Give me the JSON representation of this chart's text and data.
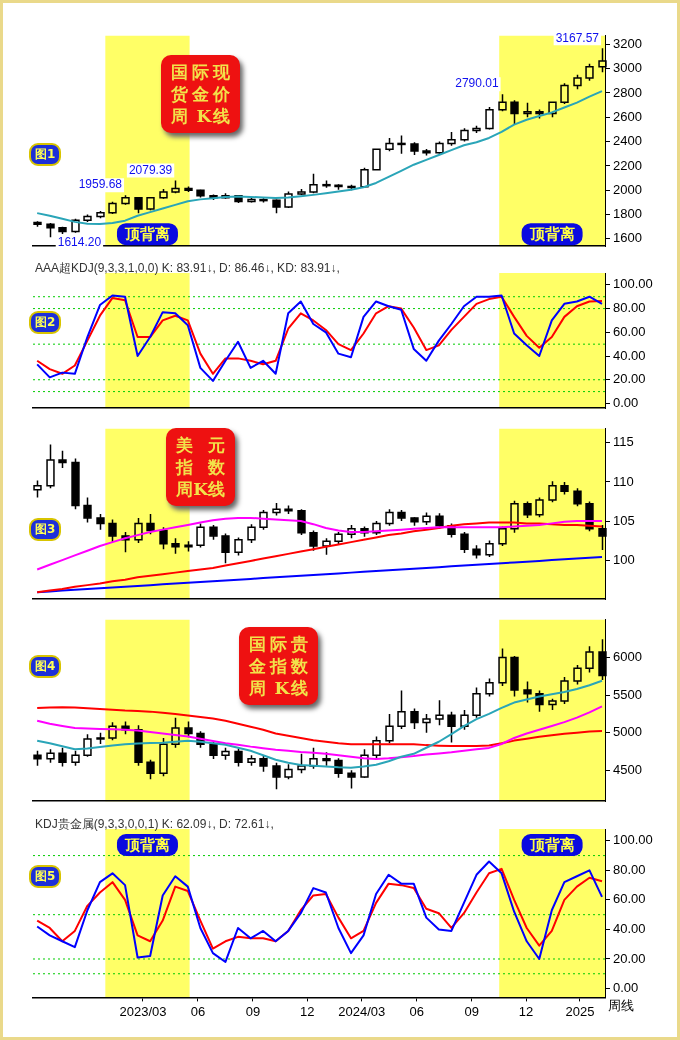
{
  "chart_data": [
    {
      "type": "candlestick",
      "title": "国际现货金价周 K线",
      "color": "#000000",
      "x": [
        "2022-09-05",
        "2022-09-26",
        "2022-10-17",
        "2022-11-07",
        "2022-11-28",
        "2022-12-19",
        "2023-01-09",
        "2023-01-30",
        "2023-02-20",
        "2023-03-13",
        "2023-04-03",
        "2023-04-24",
        "2023-05-15",
        "2023-06-05",
        "2023-06-26",
        "2023-07-17",
        "2023-08-07",
        "2023-08-28",
        "2023-09-18",
        "2023-10-09",
        "2023-10-30",
        "2023-11-20",
        "2023-12-11",
        "2024-01-01",
        "2024-01-22",
        "2024-02-12",
        "2024-03-04",
        "2024-03-25",
        "2024-04-15",
        "2024-05-06",
        "2024-05-27",
        "2024-06-17",
        "2024-07-08",
        "2024-07-29",
        "2024-08-19",
        "2024-09-09",
        "2024-09-30",
        "2024-10-21",
        "2024-11-11",
        "2024-12-02",
        "2024-12-23",
        "2025-01-13",
        "2025-02-03",
        "2025-02-24",
        "2025-03-17",
        "2025-04-07"
      ],
      "ohlc": [
        [
          1735,
          1745,
          1700,
          1720
        ],
        [
          1720,
          1730,
          1614.2,
          1692
        ],
        [
          1692,
          1700,
          1640,
          1660
        ],
        [
          1660,
          1765,
          1650,
          1754
        ],
        [
          1754,
          1800,
          1740,
          1785
        ],
        [
          1785,
          1830,
          1770,
          1815
        ],
        [
          1815,
          1905,
          1805,
          1892
        ],
        [
          1892,
          1959.68,
          1880,
          1938
        ],
        [
          1938,
          1945,
          1810,
          1846
        ],
        [
          1846,
          1938,
          1835,
          1938
        ],
        [
          1938,
          2010,
          1930,
          1985
        ],
        [
          1985,
          2079.39,
          1975,
          2015
        ],
        [
          2015,
          2030,
          1985,
          2000
        ],
        [
          2000,
          2005,
          1940,
          1954
        ],
        [
          1954,
          1965,
          1920,
          1938
        ],
        [
          1938,
          1975,
          1930,
          1954
        ],
        [
          1954,
          1960,
          1895,
          1908
        ],
        [
          1908,
          1940,
          1900,
          1923
        ],
        [
          1923,
          1935,
          1900,
          1918
        ],
        [
          1918,
          1925,
          1810,
          1862
        ],
        [
          1862,
          1990,
          1855,
          1969
        ],
        [
          1969,
          2010,
          1960,
          1985
        ],
        [
          1985,
          2135,
          1975,
          2046
        ],
        [
          2046,
          2080,
          2020,
          2041
        ],
        [
          2041,
          2050,
          2005,
          2031
        ],
        [
          2031,
          2045,
          2000,
          2028
        ],
        [
          2028,
          2185,
          2020,
          2169
        ],
        [
          2169,
          2338,
          2169,
          2338
        ],
        [
          2338,
          2430,
          2320,
          2385
        ],
        [
          2385,
          2450,
          2300,
          2380
        ],
        [
          2380,
          2395,
          2290,
          2323
        ],
        [
          2323,
          2340,
          2285,
          2308
        ],
        [
          2308,
          2400,
          2300,
          2385
        ],
        [
          2385,
          2480,
          2365,
          2415
        ],
        [
          2415,
          2510,
          2400,
          2492
        ],
        [
          2492,
          2530,
          2470,
          2508
        ],
        [
          2508,
          2685,
          2500,
          2661
        ],
        [
          2661,
          2790.01,
          2650,
          2723
        ],
        [
          2723,
          2740,
          2540,
          2631
        ],
        [
          2631,
          2720,
          2600,
          2646
        ],
        [
          2646,
          2665,
          2590,
          2631
        ],
        [
          2631,
          2723,
          2600,
          2723
        ],
        [
          2723,
          2880,
          2710,
          2862
        ],
        [
          2862,
          2950,
          2830,
          2923
        ],
        [
          2923,
          3040,
          2900,
          3015
        ],
        [
          3015,
          3167.57,
          2970,
          3062
        ]
      ],
      "series": [
        {
          "type": "line",
          "color": "#2aa5b8",
          "values": [
            1812,
            1790,
            1765,
            1740,
            1725,
            1722,
            1730,
            1750,
            1790,
            1820,
            1850,
            1880,
            1910,
            1925,
            1935,
            1945,
            1948,
            1945,
            1940,
            1936,
            1940,
            1950,
            1962,
            1975,
            1990,
            2005,
            2025,
            2060,
            2110,
            2160,
            2210,
            2250,
            2290,
            2330,
            2370,
            2395,
            2430,
            2480,
            2540,
            2580,
            2610,
            2640,
            2680,
            2720,
            2770,
            2815
          ]
        }
      ],
      "xlim": [
        "2022-08-29",
        "2025-04-12"
      ],
      "ylim": [
        1540,
        3270
      ],
      "yticks": [
        1600,
        1800,
        2000,
        2200,
        2400,
        2600,
        2800,
        3000,
        3200
      ],
      "tick_labels": "y",
      "bands": [
        {
          "axis": "x",
          "from": "2022-12-28",
          "to": "2023-05-18",
          "label": "顶背离",
          "color": "#ffff66"
        },
        {
          "axis": "x",
          "from": "2024-10-17",
          "to": "2025-04-12",
          "label": "顶背离",
          "color": "#ffff66"
        }
      ],
      "annotations": [
        "图1",
        {
          "text": "1614.20",
          "x": "2022-09-26",
          "y": 1614.2
        },
        {
          "text": "1959.68",
          "x": "2023-01-30",
          "y": 1959.68
        },
        {
          "text": "2079.39",
          "x": "2023-04-24",
          "y": 2079.39
        },
        {
          "text": "2790.01",
          "x": "2024-10-21",
          "y": 2790.01
        },
        {
          "text": "3167.57",
          "x": "2025-04-07",
          "y": 3167.57
        }
      ]
    },
    {
      "type": "line",
      "title": "AAA超KDJ(9,3,3,1,0,0)  K: 83.91↓, D: 86.46↓, KD: 83.91↓,",
      "x": [
        "2022-09-05",
        "2022-09-26",
        "2022-10-17",
        "2022-11-07",
        "2022-11-28",
        "2022-12-19",
        "2023-01-09",
        "2023-01-30",
        "2023-02-20",
        "2023-03-13",
        "2023-04-03",
        "2023-04-24",
        "2023-05-15",
        "2023-06-05",
        "2023-06-26",
        "2023-07-17",
        "2023-08-07",
        "2023-08-28",
        "2023-09-18",
        "2023-10-09",
        "2023-10-30",
        "2023-11-20",
        "2023-12-11",
        "2024-01-01",
        "2024-01-22",
        "2024-02-12",
        "2024-03-04",
        "2024-03-25",
        "2024-04-15",
        "2024-05-06",
        "2024-05-27",
        "2024-06-17",
        "2024-07-08",
        "2024-07-29",
        "2024-08-19",
        "2024-09-09",
        "2024-09-30",
        "2024-10-21",
        "2024-11-11",
        "2024-12-02",
        "2024-12-23",
        "2025-01-13",
        "2025-02-03",
        "2025-02-24",
        "2025-03-17",
        "2025-04-07"
      ],
      "series": [
        {
          "color": "#0000ff",
          "values": [
            33,
            22,
            26,
            25,
            56,
            83,
            91,
            90,
            40,
            56,
            77,
            76,
            66,
            30,
            19,
            36,
            52,
            30,
            36,
            25,
            76,
            86,
            67,
            60,
            42,
            39,
            73,
            86,
            82,
            79,
            46,
            36,
            53,
            67,
            82,
            90,
            90,
            91,
            59,
            49,
            40,
            70,
            84,
            86,
            90,
            83.91
          ]
        },
        {
          "color": "#ff0000",
          "values": [
            36,
            29,
            25,
            32,
            53,
            74,
            89,
            87,
            56,
            56,
            70,
            74,
            70,
            42,
            25,
            38,
            38,
            36,
            33,
            36,
            63,
            76,
            70,
            62,
            50,
            45,
            59,
            76,
            82,
            80,
            64,
            45,
            49,
            62,
            73,
            84,
            88,
            90,
            73,
            57,
            47,
            56,
            73,
            82,
            86,
            86.46
          ]
        }
      ],
      "xlim": [
        "2022-08-29",
        "2025-04-12"
      ],
      "ylim": [
        -4,
        110
      ],
      "yticks": [
        {
          "value": 0,
          "label": "0.00"
        },
        {
          "value": 20,
          "label": "20.00"
        },
        {
          "value": 40,
          "label": "40.00"
        },
        {
          "value": 60,
          "label": "60.00"
        },
        {
          "value": 80,
          "label": "80.00"
        },
        {
          "value": 100,
          "label": "100.00"
        }
      ],
      "tick_labels": "y",
      "ref_lines": [
        {
          "axis": "y",
          "value": 10,
          "color": "#00cc00",
          "line_style": "dotted"
        },
        {
          "axis": "y",
          "value": 20,
          "color": "#00cc00",
          "line_style": "dotted"
        },
        {
          "axis": "y",
          "value": 50,
          "color": "#00cc00",
          "line_style": "dotted"
        },
        {
          "axis": "y",
          "value": 80,
          "color": "#00cc00",
          "line_style": "dotted"
        },
        {
          "axis": "y",
          "value": 90,
          "color": "#00cc00",
          "line_style": "dotted"
        }
      ],
      "bands": [
        {
          "axis": "x",
          "from": "2022-12-28",
          "to": "2023-05-18",
          "color": "#ffff66"
        },
        {
          "axis": "x",
          "from": "2024-10-17",
          "to": "2025-04-12",
          "color": "#ffff66"
        }
      ],
      "annotations": [
        "图2"
      ]
    },
    {
      "type": "candlestick",
      "title": "美元指数周K线",
      "color": "#000000",
      "x": [
        "2022-09-05",
        "2022-09-26",
        "2022-10-17",
        "2022-11-07",
        "2022-11-28",
        "2022-12-19",
        "2023-01-09",
        "2023-01-30",
        "2023-02-20",
        "2023-03-13",
        "2023-04-03",
        "2023-04-24",
        "2023-05-15",
        "2023-06-05",
        "2023-06-26",
        "2023-07-17",
        "2023-08-07",
        "2023-08-28",
        "2023-09-18",
        "2023-10-09",
        "2023-10-30",
        "2023-11-20",
        "2023-12-11",
        "2024-01-01",
        "2024-01-22",
        "2024-02-12",
        "2024-03-04",
        "2024-03-25",
        "2024-04-15",
        "2024-05-06",
        "2024-05-27",
        "2024-06-17",
        "2024-07-08",
        "2024-07-29",
        "2024-08-19",
        "2024-09-09",
        "2024-09-30",
        "2024-10-21",
        "2024-11-11",
        "2024-12-02",
        "2024-12-23",
        "2025-01-13",
        "2025-02-03",
        "2025-02-24",
        "2025-03-17",
        "2025-04-07"
      ],
      "ohlc": [
        [
          109,
          110.2,
          108,
          109.5
        ],
        [
          109.5,
          114.8,
          109.2,
          112.8
        ],
        [
          112.8,
          114,
          111.8,
          112.5
        ],
        [
          112.5,
          113,
          106.5,
          107
        ],
        [
          107,
          108,
          104.8,
          105.4
        ],
        [
          105.4,
          105.9,
          103.9,
          104.7
        ],
        [
          104.7,
          105.2,
          102.3,
          103.1
        ],
        [
          103.1,
          103.6,
          101,
          102.6
        ],
        [
          102.6,
          105.4,
          102.2,
          104.7
        ],
        [
          104.7,
          105.9,
          103.3,
          103.8
        ],
        [
          103.8,
          104.2,
          101.4,
          102.1
        ],
        [
          102.1,
          102.8,
          100.8,
          101.7
        ],
        [
          101.7,
          102.4,
          101.1,
          101.9
        ],
        [
          101.9,
          104.7,
          101.6,
          104.2
        ],
        [
          104.2,
          104.5,
          102.6,
          103.1
        ],
        [
          103.1,
          103.4,
          99.6,
          101
        ],
        [
          101,
          102.9,
          100.6,
          102.6
        ],
        [
          102.6,
          104.6,
          102.2,
          104.2
        ],
        [
          104.2,
          106.4,
          103.9,
          106.1
        ],
        [
          106.1,
          107.3,
          105.7,
          106.5
        ],
        [
          106.5,
          107,
          105.9,
          106.3
        ],
        [
          106.3,
          106.5,
          103.2,
          103.5
        ],
        [
          103.5,
          103.8,
          101.2,
          101.8
        ],
        [
          101.8,
          102.8,
          100.7,
          102.4
        ],
        [
          102.4,
          103.6,
          102,
          103.3
        ],
        [
          103.3,
          104.5,
          102.8,
          104
        ],
        [
          104,
          104.3,
          103,
          103.5
        ],
        [
          103.5,
          105,
          103.2,
          104.7
        ],
        [
          104.7,
          106.5,
          104.4,
          106.1
        ],
        [
          106.1,
          106.4,
          105,
          105.4
        ],
        [
          105.4,
          105.5,
          104.4,
          104.9
        ],
        [
          104.9,
          106.1,
          104.5,
          105.6
        ],
        [
          105.6,
          106,
          104,
          104.4
        ],
        [
          104.4,
          104.7,
          102.9,
          103.3
        ],
        [
          103.3,
          103.6,
          100.9,
          101.4
        ],
        [
          101.4,
          101.9,
          100.2,
          100.7
        ],
        [
          100.7,
          102.5,
          100.4,
          102.1
        ],
        [
          102.1,
          104.3,
          101.8,
          104
        ],
        [
          104,
          107.6,
          103.5,
          107.2
        ],
        [
          107.2,
          107.5,
          105.4,
          105.8
        ],
        [
          105.8,
          108,
          105.5,
          107.7
        ],
        [
          107.7,
          110.1,
          107.4,
          109.5
        ],
        [
          109.5,
          110,
          108.4,
          108.8
        ],
        [
          108.8,
          109.2,
          106.9,
          107.2
        ],
        [
          107.2,
          107.5,
          103.7,
          104
        ],
        [
          104,
          104.5,
          101.3,
          103.1
        ]
      ],
      "series": [
        {
          "type": "line",
          "color": "#ff00ff",
          "values": [
            98.8,
            99.4,
            100,
            100.6,
            101.2,
            101.8,
            102.3,
            102.8,
            103.2,
            103.6,
            103.9,
            104.2,
            104.5,
            104.8,
            105.1,
            105.3,
            105.4,
            105.4,
            105.3,
            105.2,
            105.1,
            105,
            104.6,
            104.1,
            103.8,
            103.6,
            103.6,
            103.7,
            103.8,
            103.9,
            104,
            104.1,
            104.2,
            104.2,
            104.2,
            104.2,
            104.2,
            104.2,
            104.3,
            104.4,
            104.5,
            104.7,
            104.9,
            105,
            105,
            105
          ]
        },
        {
          "type": "line",
          "color": "#ff0000",
          "values": [
            95.9,
            96.1,
            96.3,
            96.6,
            96.8,
            97,
            97.3,
            97.5,
            97.8,
            98,
            98.2,
            98.4,
            98.6,
            98.8,
            99,
            99.3,
            99.6,
            99.9,
            100.2,
            100.5,
            100.8,
            101.1,
            101.4,
            101.7,
            102,
            102.3,
            102.6,
            102.9,
            103.2,
            103.4,
            103.7,
            103.9,
            104.1,
            104.4,
            104.6,
            104.7,
            104.8,
            104.8,
            104.8,
            104.7,
            104.7,
            104.6,
            104.5,
            104.5,
            104.4,
            104.3
          ]
        },
        {
          "type": "line",
          "color": "#0000ff",
          "values": [
            95.9,
            96,
            96.1,
            96.2,
            96.3,
            96.4,
            96.5,
            96.6,
            96.7,
            96.8,
            96.9,
            97,
            97.1,
            97.2,
            97.3,
            97.4,
            97.5,
            97.6,
            97.7,
            97.8,
            97.9,
            98,
            98.1,
            98.2,
            98.3,
            98.4,
            98.5,
            98.6,
            98.7,
            98.8,
            98.9,
            99,
            99.1,
            99.2,
            99.3,
            99.4,
            99.5,
            99.6,
            99.7,
            99.8,
            99.9,
            100,
            100.1,
            100.2,
            100.3,
            100.4
          ]
        }
      ],
      "xlim": [
        "2022-08-29",
        "2025-04-12"
      ],
      "ylim": [
        95,
        116.8
      ],
      "yticks": [
        100,
        105,
        110,
        115
      ],
      "tick_labels": "y",
      "bands": [
        {
          "axis": "x",
          "from": "2022-12-28",
          "to": "2023-05-18",
          "color": "#ffff66"
        },
        {
          "axis": "x",
          "from": "2024-10-17",
          "to": "2025-04-12",
          "color": "#ffff66"
        }
      ],
      "annotations": [
        "图3"
      ]
    },
    {
      "type": "candlestick",
      "title": "国际贵金指数周 K线",
      "color": "#000000",
      "x": [
        "2022-09-05",
        "2022-09-26",
        "2022-10-17",
        "2022-11-07",
        "2022-11-28",
        "2022-12-19",
        "2023-01-09",
        "2023-01-30",
        "2023-02-20",
        "2023-03-13",
        "2023-04-03",
        "2023-04-24",
        "2023-05-15",
        "2023-06-05",
        "2023-06-26",
        "2023-07-17",
        "2023-08-07",
        "2023-08-28",
        "2023-09-18",
        "2023-10-09",
        "2023-10-30",
        "2023-11-20",
        "2023-12-11",
        "2024-01-01",
        "2024-01-22",
        "2024-02-12",
        "2024-03-04",
        "2024-03-25",
        "2024-04-15",
        "2024-05-06",
        "2024-05-27",
        "2024-06-17",
        "2024-07-08",
        "2024-07-29",
        "2024-08-19",
        "2024-09-09",
        "2024-09-30",
        "2024-10-21",
        "2024-11-11",
        "2024-12-02",
        "2024-12-23",
        "2025-01-13",
        "2025-02-03",
        "2025-02-24",
        "2025-03-17",
        "2025-04-07"
      ],
      "ohlc": [
        [
          4700,
          4760,
          4560,
          4654
        ],
        [
          4654,
          4780,
          4600,
          4726
        ],
        [
          4726,
          4800,
          4550,
          4606
        ],
        [
          4606,
          4760,
          4560,
          4702
        ],
        [
          4702,
          4980,
          4680,
          4918
        ],
        [
          4918,
          5000,
          4850,
          4930
        ],
        [
          4930,
          5140,
          4900,
          5087
        ],
        [
          5087,
          5150,
          4980,
          5038
        ],
        [
          5038,
          5100,
          4560,
          4606
        ],
        [
          4606,
          4640,
          4380,
          4462
        ],
        [
          4462,
          4930,
          4420,
          4846
        ],
        [
          4846,
          5200,
          4800,
          5062
        ],
        [
          5062,
          5150,
          4940,
          4990
        ],
        [
          4990,
          5020,
          4800,
          4846
        ],
        [
          4846,
          4880,
          4650,
          4702
        ],
        [
          4702,
          4800,
          4640,
          4750
        ],
        [
          4750,
          4790,
          4550,
          4606
        ],
        [
          4606,
          4700,
          4560,
          4654
        ],
        [
          4654,
          4700,
          4480,
          4558
        ],
        [
          4558,
          4600,
          4250,
          4413
        ],
        [
          4413,
          4580,
          4380,
          4510
        ],
        [
          4510,
          4720,
          4460,
          4558
        ],
        [
          4558,
          4800,
          4520,
          4654
        ],
        [
          4654,
          4740,
          4560,
          4630
        ],
        [
          4630,
          4660,
          4400,
          4462
        ],
        [
          4462,
          4500,
          4260,
          4413
        ],
        [
          4413,
          4780,
          4400,
          4702
        ],
        [
          4702,
          4950,
          4660,
          4894
        ],
        [
          4894,
          5250,
          4860,
          5087
        ],
        [
          5087,
          5560,
          5050,
          5279
        ],
        [
          5279,
          5320,
          5050,
          5135
        ],
        [
          5135,
          5250,
          5000,
          5183
        ],
        [
          5183,
          5430,
          5100,
          5231
        ],
        [
          5231,
          5280,
          4870,
          5087
        ],
        [
          5087,
          5300,
          5040,
          5231
        ],
        [
          5231,
          5600,
          5200,
          5519
        ],
        [
          5519,
          5720,
          5480,
          5663
        ],
        [
          5663,
          6120,
          5620,
          6000
        ],
        [
          6000,
          6020,
          5480,
          5567
        ],
        [
          5567,
          5680,
          5400,
          5519
        ],
        [
          5519,
          5560,
          5280,
          5375
        ],
        [
          5375,
          5450,
          5300,
          5420
        ],
        [
          5420,
          5740,
          5380,
          5687
        ],
        [
          5687,
          5900,
          5640,
          5856
        ],
        [
          5856,
          6150,
          5800,
          6072
        ],
        [
          6072,
          6240,
          5700,
          5760
        ]
      ],
      "series": [
        {
          "type": "line",
          "color": "#2aa5b8",
          "values": [
            4894,
            4860,
            4820,
            4780,
            4790,
            4810,
            4830,
            4846,
            4855,
            4862,
            4868,
            4880,
            4894,
            4880,
            4860,
            4840,
            4800,
            4760,
            4700,
            4640,
            4600,
            4570,
            4560,
            4550,
            4540,
            4534,
            4550,
            4575,
            4620,
            4680,
            4720,
            4800,
            4880,
            4980,
            5087,
            5180,
            5250,
            5330,
            5400,
            5440,
            5480,
            5510,
            5540,
            5580,
            5630,
            5690
          ]
        },
        {
          "type": "line",
          "color": "#ff00ff",
          "values": [
            5159,
            5120,
            5090,
            5062,
            5055,
            5050,
            5045,
            5040,
            5030,
            5010,
            4990,
            4970,
            4950,
            4920,
            4890,
            4860,
            4840,
            4815,
            4795,
            4775,
            4760,
            4745,
            4735,
            4720,
            4700,
            4680,
            4660,
            4650,
            4660,
            4675,
            4690,
            4710,
            4725,
            4740,
            4760,
            4780,
            4798,
            4850,
            4930,
            4990,
            5040,
            5090,
            5140,
            5200,
            5270,
            5350
          ]
        },
        {
          "type": "line",
          "color": "#ff0000",
          "values": [
            5327,
            5335,
            5337,
            5335,
            5325,
            5315,
            5305,
            5295,
            5289,
            5280,
            5265,
            5250,
            5230,
            5210,
            5190,
            5160,
            5120,
            5080,
            5040,
            4990,
            4960,
            4930,
            4900,
            4880,
            4860,
            4846,
            4846,
            4846,
            4846,
            4846,
            4846,
            4835,
            4828,
            4822,
            4822,
            4822,
            4830,
            4860,
            4895,
            4920,
            4945,
            4965,
            4985,
            5000,
            5015,
            5024
          ]
        }
      ],
      "xlim": [
        "2022-08-29",
        "2025-04-12"
      ],
      "ylim": [
        4090,
        6500
      ],
      "yticks": [
        4500,
        5000,
        5500,
        6000
      ],
      "tick_labels": "y",
      "bands": [
        {
          "axis": "x",
          "from": "2022-12-28",
          "to": "2023-05-18",
          "color": "#ffff66"
        },
        {
          "axis": "x",
          "from": "2024-10-17",
          "to": "2025-04-12",
          "color": "#ffff66"
        }
      ],
      "annotations": [
        "图4"
      ]
    },
    {
      "type": "line",
      "title": "KDJ贵金属(9,3,3,0,0,1)  K: 62.09↓, D: 72.61↓,",
      "xlabel": "周线",
      "x": [
        "2022-09-05",
        "2022-09-26",
        "2022-10-17",
        "2022-11-07",
        "2022-11-28",
        "2022-12-19",
        "2023-01-09",
        "2023-01-30",
        "2023-02-20",
        "2023-03-13",
        "2023-04-03",
        "2023-04-24",
        "2023-05-15",
        "2023-06-05",
        "2023-06-26",
        "2023-07-17",
        "2023-08-07",
        "2023-08-28",
        "2023-09-18",
        "2023-10-09",
        "2023-10-30",
        "2023-11-20",
        "2023-12-11",
        "2024-01-01",
        "2024-01-22",
        "2024-02-12",
        "2024-03-04",
        "2024-03-25",
        "2024-04-15",
        "2024-05-06",
        "2024-05-27",
        "2024-06-17",
        "2024-07-08",
        "2024-07-29",
        "2024-08-19",
        "2024-09-09",
        "2024-09-30",
        "2024-10-21",
        "2024-11-11",
        "2024-12-02",
        "2024-12-23",
        "2025-01-13",
        "2025-02-03",
        "2025-02-24",
        "2025-03-17",
        "2025-04-07"
      ],
      "series": [
        {
          "color": "#0000ff",
          "values": [
            42,
            36,
            32,
            28,
            53,
            72,
            78,
            70,
            21,
            22,
            63,
            76,
            69,
            41,
            24,
            18,
            41,
            34,
            39,
            32,
            39,
            51,
            68,
            65,
            41,
            24,
            36,
            64,
            77,
            71,
            71,
            48,
            40,
            39,
            58,
            77,
            86,
            78,
            52,
            32,
            20,
            53,
            72,
            76,
            80,
            62.09
          ]
        },
        {
          "color": "#ff0000",
          "values": [
            46,
            41,
            32,
            39,
            56,
            65,
            72,
            60,
            36,
            32,
            46,
            69,
            66,
            46,
            27,
            32,
            35,
            34,
            34,
            32,
            39,
            53,
            63,
            64,
            48,
            34,
            39,
            58,
            71,
            70,
            68,
            54,
            51,
            41,
            51,
            65,
            78,
            81,
            60,
            41,
            29,
            39,
            60,
            69,
            75,
            72.61
          ]
        }
      ],
      "xlim": [
        "2022-08-29",
        "2025-04-12"
      ],
      "xticks": [
        {
          "value": "2023-03-01",
          "label": "2023/03"
        },
        {
          "value": "2023-06-01",
          "label": "06"
        },
        {
          "value": "2023-09-01",
          "label": "09"
        },
        {
          "value": "2023-12-01",
          "label": "12"
        },
        {
          "value": "2024-03-01",
          "label": "2024/03"
        },
        {
          "value": "2024-06-01",
          "label": "06"
        },
        {
          "value": "2024-09-01",
          "label": "09"
        },
        {
          "value": "2024-12-01",
          "label": "12"
        },
        {
          "value": "2025-03-01",
          "label": "2025"
        }
      ],
      "ylim": [
        -6,
        108
      ],
      "yticks": [
        {
          "value": 0,
          "label": "0.00"
        },
        {
          "value": 20,
          "label": "20.00"
        },
        {
          "value": 40,
          "label": "40.00"
        },
        {
          "value": 60,
          "label": "60.00"
        },
        {
          "value": 80,
          "label": "80.00"
        },
        {
          "value": 100,
          "label": "100.00"
        }
      ],
      "ref_lines": [
        {
          "axis": "y",
          "value": 10,
          "color": "#00cc00",
          "line_style": "dotted"
        },
        {
          "axis": "y",
          "value": 20,
          "color": "#00cc00",
          "line_style": "dotted"
        },
        {
          "axis": "y",
          "value": 50,
          "color": "#00cc00",
          "line_style": "dotted"
        },
        {
          "axis": "y",
          "value": 90,
          "color": "#00cc00",
          "line_style": "dotted"
        }
      ],
      "bands": [
        {
          "axis": "x",
          "from": "2022-12-28",
          "to": "2023-05-18",
          "label": "顶背离",
          "color": "#ffff66"
        },
        {
          "axis": "x",
          "from": "2024-10-17",
          "to": "2025-04-12",
          "label": "顶背离",
          "color": "#ffff66"
        }
      ],
      "annotations": [
        "图5"
      ]
    }
  ]
}
